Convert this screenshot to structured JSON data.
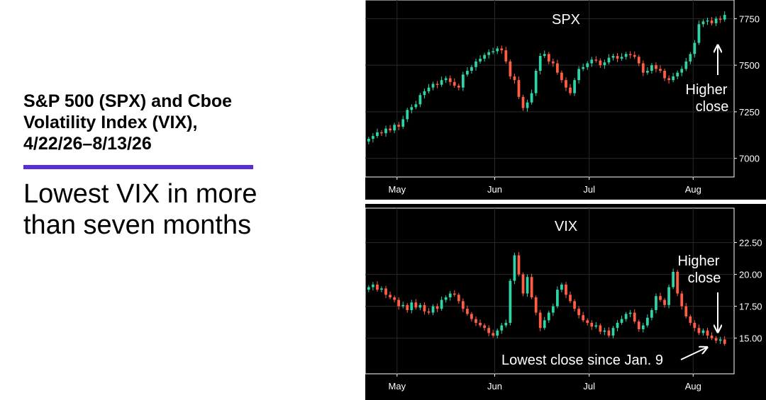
{
  "heading": {
    "line1": "S&P 500 (SPX) and Cboe",
    "line2": "Volatility Index (VIX),",
    "line3": "4/22/26–8/13/26"
  },
  "subheading": {
    "line1": "Lowest VIX in more",
    "line2": "than seven months"
  },
  "colors": {
    "accent": "#5a2ed6",
    "up": "#2ed3a6",
    "down": "#ff5d44",
    "panel_bg": "#000000",
    "text": "#ffffff"
  },
  "chart_data": [
    {
      "type": "candlestick",
      "title": "SPX",
      "ylim": [
        6900,
        7850
      ],
      "y_ticks": [
        "7000",
        "7250",
        "7500",
        "7750"
      ],
      "x_ticks": [
        {
          "label": "May",
          "date": "2026-05-01"
        },
        {
          "label": "Jun",
          "date": "2026-06-01"
        },
        {
          "label": "Jul",
          "date": "2026-07-01"
        },
        {
          "label": "Aug",
          "date": "2026-08-03"
        }
      ],
      "x_range": [
        "2026-04-22",
        "2026-08-13"
      ],
      "grid": true,
      "annotations": [
        "Higher",
        "close"
      ],
      "close": [
        7105,
        7120,
        7140,
        7135,
        7160,
        7150,
        7180,
        7170,
        7210,
        7260,
        7275,
        7290,
        7340,
        7360,
        7380,
        7400,
        7395,
        7420,
        7430,
        7410,
        7390,
        7380,
        7450,
        7470,
        7490,
        7520,
        7535,
        7555,
        7570,
        7575,
        7590,
        7580,
        7520,
        7440,
        7420,
        7330,
        7270,
        7300,
        7350,
        7470,
        7550,
        7560,
        7520,
        7510,
        7460,
        7420,
        7380,
        7350,
        7420,
        7480,
        7490,
        7510,
        7530,
        7525,
        7500,
        7515,
        7540,
        7550,
        7535,
        7545,
        7560,
        7555,
        7545,
        7510,
        7460,
        7470,
        7500,
        7480,
        7470,
        7430,
        7420,
        7440,
        7460,
        7480,
        7520,
        7560,
        7620,
        7720,
        7735,
        7740,
        7725,
        7750,
        7745,
        7770
      ]
    },
    {
      "type": "candlestick",
      "title": "VIX",
      "ylim": [
        12.2,
        25.2
      ],
      "y_ticks": [
        "15.00",
        "17.50",
        "20.00",
        "22.50"
      ],
      "x_ticks": [
        {
          "label": "May",
          "date": "2026-05-01"
        },
        {
          "label": "Jun",
          "date": "2026-06-01"
        },
        {
          "label": "Jul",
          "date": "2026-07-01"
        },
        {
          "label": "Aug",
          "date": "2026-08-03"
        }
      ],
      "x_range": [
        "2026-04-22",
        "2026-08-13"
      ],
      "grid": true,
      "annotations": [
        "Higher",
        "close",
        "Lowest close since Jan. 9"
      ],
      "close": [
        19.0,
        19.2,
        18.8,
        18.9,
        18.4,
        18.2,
        18.0,
        17.5,
        17.6,
        17.2,
        17.8,
        17.4,
        17.6,
        17.1,
        17.0,
        17.5,
        17.3,
        18.0,
        18.2,
        18.5,
        18.4,
        17.9,
        17.3,
        16.9,
        16.5,
        16.2,
        16.0,
        15.8,
        15.4,
        15.2,
        15.6,
        16.0,
        16.2,
        19.5,
        21.5,
        20.0,
        18.5,
        19.8,
        18.2,
        17.0,
        15.8,
        16.4,
        17.0,
        17.5,
        18.8,
        19.2,
        18.4,
        17.9,
        17.3,
        16.8,
        16.4,
        16.2,
        15.9,
        16.0,
        15.5,
        15.6,
        15.2,
        15.8,
        16.2,
        16.5,
        16.9,
        17.0,
        16.3,
        15.7,
        16.0,
        16.6,
        17.2,
        18.3,
        18.0,
        17.6,
        19.0,
        20.2,
        18.5,
        17.5,
        16.7,
        16.2,
        15.8,
        15.4,
        15.6,
        15.2,
        15.0,
        14.8,
        14.9,
        14.55
      ]
    }
  ]
}
